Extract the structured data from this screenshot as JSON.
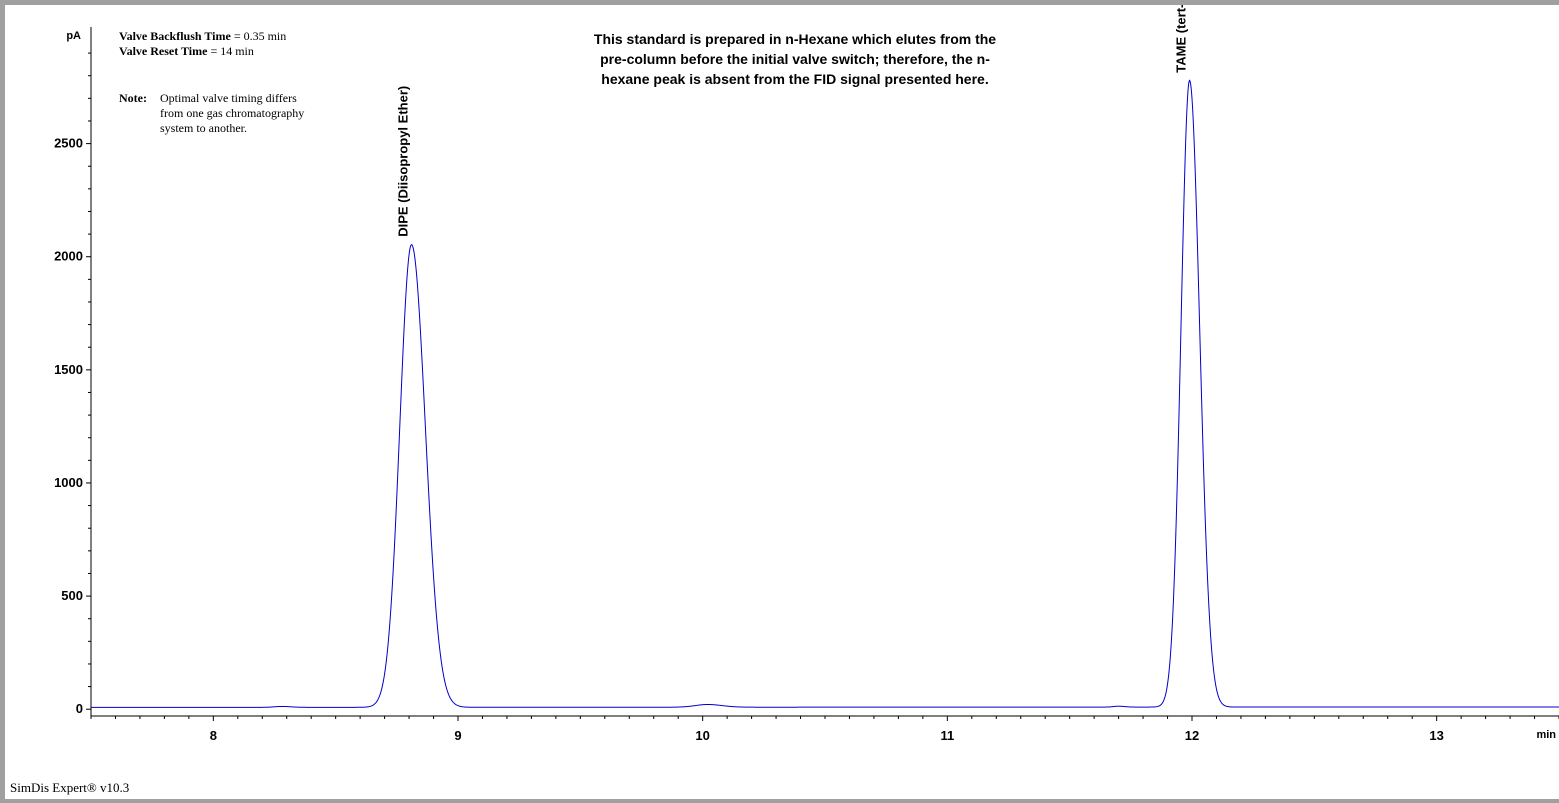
{
  "header": {
    "backflush_label": "Valve Backflush Time",
    "backflush_value": " = 0.35 min",
    "reset_label": "Valve Reset Time",
    "reset_value": " = 14 min",
    "note_label": "Note:",
    "note_text": "Optimal valve timing differs\nfrom one gas chromatography\nsystem to another.",
    "center_note": "This standard is prepared in n-Hexane which elutes from the\npre-column before the initial valve switch; therefore, the n-\nhexane peak is absent from the FID signal presented here."
  },
  "footer": {
    "software": "SimDis Expert® v10.3"
  },
  "chart_data": {
    "type": "line",
    "xlabel": "min",
    "ylabel": "pA",
    "xlim": [
      7.5,
      13.5
    ],
    "ylim": [
      -30,
      2980
    ],
    "x_ticks": [
      8,
      9,
      10,
      11,
      12,
      13
    ],
    "y_ticks": [
      0,
      500,
      1000,
      1500,
      2000,
      2500
    ],
    "grid": false,
    "line_color": "#0000cc",
    "baseline": 8,
    "peaks": [
      {
        "name": "DIPE (Diisopropyl Ether)",
        "rt": 8.81,
        "height": 2045,
        "sigma": 0.048
      },
      {
        "name": "TAME (tert-Amyl Methyl Ether)",
        "rt": 11.99,
        "height": 2770,
        "sigma": 0.035
      }
    ],
    "minor_peaks": [
      {
        "rt": 8.28,
        "height": 4,
        "sigma": 0.03
      },
      {
        "rt": 10.02,
        "height": 12,
        "sigma": 0.05
      },
      {
        "rt": 11.7,
        "height": 4,
        "sigma": 0.02
      }
    ]
  }
}
